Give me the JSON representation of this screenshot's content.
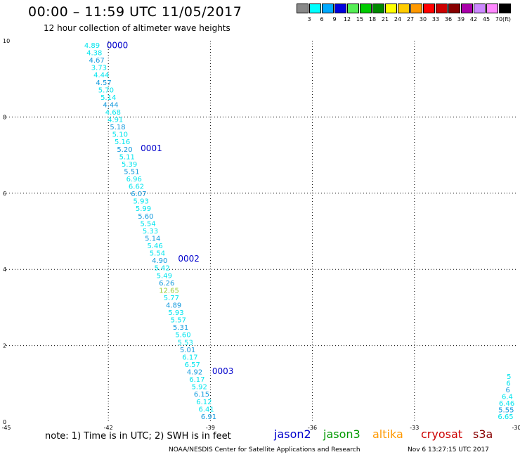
{
  "title": "00:00 – 11:59 UTC 11/05/2017",
  "subtitle": "12 hour collection of altimeter wave heights",
  "legend": {
    "unit": "(ft)",
    "colors": [
      "#888888",
      "#00ffff",
      "#00aaff",
      "#0000dd",
      "#55ee55",
      "#00cc00",
      "#008800",
      "#ffff00",
      "#ffcc00",
      "#ff9900",
      "#ff0000",
      "#cc0000",
      "#880000",
      "#aa00aa",
      "#cc88ff",
      "#ff88ff",
      "#000000"
    ],
    "labels": [
      "3",
      "6",
      "9",
      "12",
      "15",
      "18",
      "21",
      "24",
      "27",
      "30",
      "33",
      "36",
      "39",
      "42",
      "45",
      "70"
    ]
  },
  "footnote": "note:  1) Time is in UTC; 2) SWH is in feet",
  "satellites": [
    {
      "name": "jason2",
      "color": "#0000cc"
    },
    {
      "name": "jason3",
      "color": "#009900"
    },
    {
      "name": "altika",
      "color": "#ff9900"
    },
    {
      "name": "cryosat",
      "color": "#cc0000"
    },
    {
      "name": "s3a",
      "color": "#880000"
    }
  ],
  "credit": "NOAA/NESDIS Center for Satellite Applications and Research",
  "timestamp": "Nov  6 13:27:15 UTC 2017",
  "chart_data": {
    "type": "scatter",
    "title": "00:00 – 11:59 UTC 11/05/2017",
    "subtitle": "12 hour collection of altimeter wave heights",
    "xlim": [
      -45,
      -30
    ],
    "ylim": [
      0,
      10
    ],
    "xticks": [
      "-45",
      "-42",
      "-39",
      "-36",
      "-33",
      "-30"
    ],
    "yticks": [
      "0",
      "2",
      "4",
      "6",
      "8",
      "10"
    ],
    "grid": true,
    "colors": {
      "cyan": "#00e5ee",
      "blue": "#1199dd",
      "label": "#0000cc",
      "high": "#99cc33"
    },
    "time_labels": [
      {
        "text": "0000",
        "lon": -42.05,
        "lat": 9.9
      },
      {
        "text": "0001",
        "lon": -41.05,
        "lat": 7.2
      },
      {
        "text": "0002",
        "lon": -39.95,
        "lat": 4.3
      },
      {
        "text": "0003",
        "lon": -38.95,
        "lat": 1.35
      }
    ],
    "track_1": {
      "satellite": "jason2",
      "start": [
        -42.48,
        9.89
      ],
      "end": [
        -39.05,
        0.15
      ],
      "values": [
        "4.89",
        "4.38",
        "4.67",
        "3.73",
        "4.44",
        "4.57",
        "5.70",
        "5.14",
        "4.44",
        "4.68",
        "4.91",
        "5.18",
        "5.10",
        "5.16",
        "5.20",
        "5.11",
        "5.39",
        "5.51",
        "6.96",
        "6.62",
        "6.07",
        "5.93",
        "5.99",
        "5.60",
        "5.54",
        "5.33",
        "5.14",
        "5.46",
        "5.54",
        "4.90",
        "5.42",
        "5.49",
        "6.26",
        "12.65",
        "5.77",
        "4.89",
        "5.93",
        "5.57",
        "5.31",
        "5.60",
        "5.53",
        "5.01",
        "6.17",
        "6.57",
        "4.92",
        "6.17",
        "5.92",
        "6.15",
        "6.12",
        "6.41",
        "6.91"
      ]
    },
    "track_2": {
      "start": [
        -30.22,
        1.2
      ],
      "end": [
        -30.32,
        0.15
      ],
      "values": [
        "5",
        "6",
        "6",
        "6.4",
        "6.46",
        "5.55",
        "6.65"
      ]
    }
  }
}
